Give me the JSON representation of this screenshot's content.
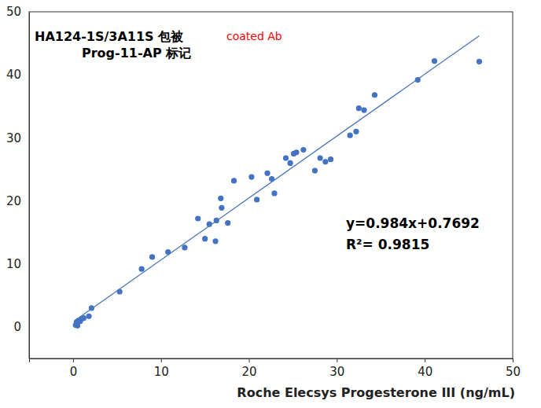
{
  "chart_data": {
    "type": "scatter",
    "x_label": "Roche Elecsys Progesterone III (ng/mL)",
    "annotations": [
      {
        "text": "HA124-1S/3A11S 包被",
        "color": "#000000"
      },
      {
        "text": "Prog-11-AP 标记",
        "color": "#000000"
      },
      {
        "text": "coated Ab",
        "color": "#ff0000"
      },
      {
        "text": "y=0.984x+0.7692",
        "color": "#000000"
      },
      {
        "text": "R²= 0.9815",
        "color": "#000000"
      }
    ],
    "xlim": [
      -5,
      50
    ],
    "xticks": [
      0,
      10,
      20,
      30,
      40,
      50
    ],
    "ylim": [
      -5,
      50
    ],
    "yticks": [
      0,
      10,
      20,
      30,
      40,
      50
    ],
    "grid": false,
    "series": [
      {
        "type": "scatter",
        "color": "#4472c4",
        "marker": "circle",
        "x": [
          0.3,
          0.4,
          0.5,
          0.6,
          0.8,
          1.0,
          1.2,
          0.4,
          1.8,
          2.1,
          5.3,
          7.8,
          9.0,
          10.8,
          12.7,
          14.2,
          15.0,
          15.5,
          16.2,
          16.3,
          16.8,
          16.9,
          17.6,
          18.3,
          20.3,
          20.9,
          22.1,
          22.6,
          22.9,
          24.2,
          24.7,
          25.1,
          25.4,
          26.2,
          27.5,
          28.1,
          28.7,
          29.3,
          31.5,
          32.2,
          32.5,
          33.1,
          34.3,
          39.2,
          41.1,
          46.2
        ],
        "values": [
          0.3,
          0.8,
          0.2,
          1.0,
          0.9,
          1.3,
          1.4,
          0.5,
          1.7,
          3.0,
          5.6,
          9.2,
          11.1,
          11.9,
          12.6,
          17.2,
          14.0,
          16.3,
          13.6,
          16.9,
          20.4,
          18.9,
          16.5,
          23.2,
          23.8,
          20.2,
          24.4,
          23.5,
          21.2,
          26.8,
          26.0,
          27.5,
          27.7,
          28.1,
          24.8,
          26.8,
          26.2,
          26.6,
          30.4,
          31.0,
          34.7,
          34.4,
          36.8,
          39.2,
          42.2,
          42.1
        ]
      },
      {
        "type": "line",
        "color": "#4a76b8",
        "line_style": "solid",
        "x": [
          0.3,
          46.2
        ],
        "values": [
          1.1,
          46.2
        ]
      }
    ]
  }
}
